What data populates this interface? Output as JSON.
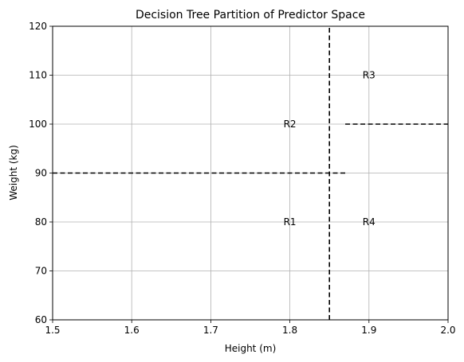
{
  "chart_data": {
    "type": "line",
    "title": "Decision Tree Partition of Predictor Space",
    "xlabel": "Height (m)",
    "ylabel": "Weight (kg)",
    "xlim": [
      1.5,
      2.0
    ],
    "ylim": [
      60,
      120
    ],
    "xticks": [
      1.5,
      1.6,
      1.7,
      1.8,
      1.9,
      2.0
    ],
    "xtick_labels": [
      "1.5",
      "1.6",
      "1.7",
      "1.8",
      "1.9",
      "2.0"
    ],
    "yticks": [
      60,
      70,
      80,
      90,
      100,
      110,
      120
    ],
    "ytick_labels": [
      "60",
      "70",
      "80",
      "90",
      "100",
      "110",
      "120"
    ],
    "grid": true,
    "split_lines": [
      {
        "x": [
          1.85,
          1.85
        ],
        "y": [
          60,
          120
        ]
      },
      {
        "x": [
          1.5,
          1.87
        ],
        "y": [
          90,
          90
        ]
      },
      {
        "x": [
          1.87,
          2.0
        ],
        "y": [
          100,
          100
        ]
      }
    ],
    "region_labels": [
      {
        "text": "R1",
        "x": 1.8,
        "y": 80
      },
      {
        "text": "R2",
        "x": 1.8,
        "y": 100
      },
      {
        "text": "R3",
        "x": 1.9,
        "y": 110
      },
      {
        "text": "R4",
        "x": 1.9,
        "y": 80
      }
    ],
    "colors": {
      "line": "#000000",
      "grid": "#b0b0b0"
    }
  }
}
